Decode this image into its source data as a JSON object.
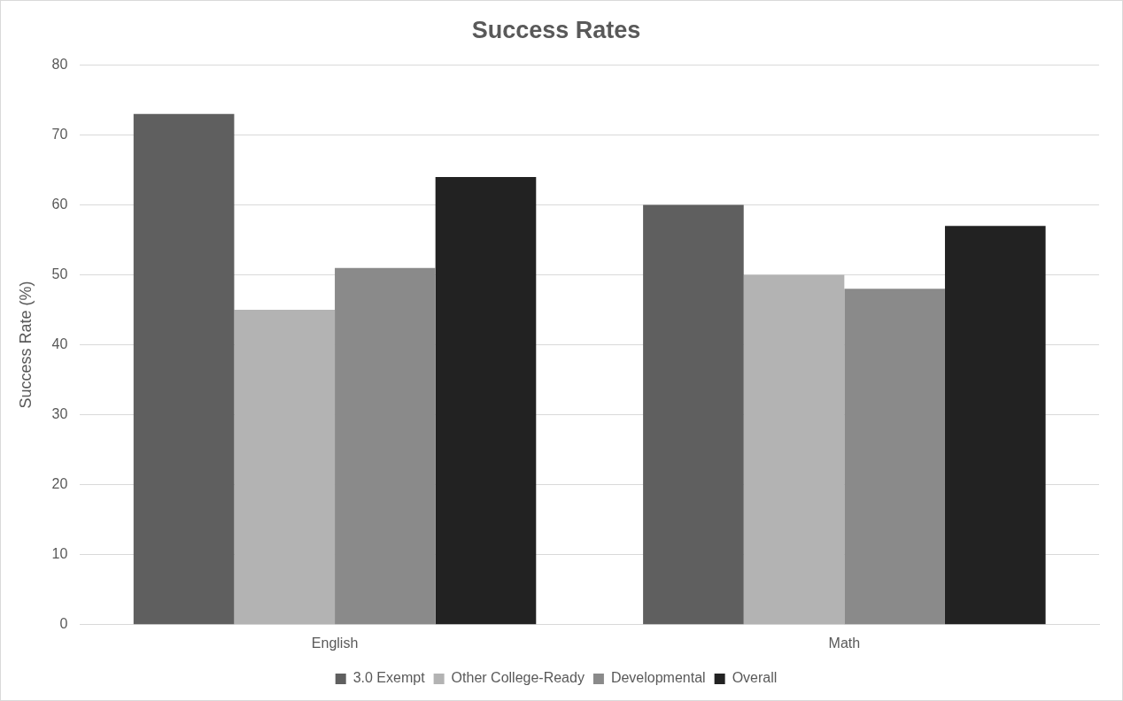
{
  "chart_data": {
    "type": "bar",
    "title": "Success Rates",
    "ylabel": "Success Rate (%)",
    "categories": [
      "English",
      "Math"
    ],
    "series": [
      {
        "name": "3.0 Exempt",
        "color": "#5f5f5f",
        "values": [
          73,
          60
        ]
      },
      {
        "name": "Other College-Ready",
        "color": "#b3b3b3",
        "values": [
          45,
          50
        ]
      },
      {
        "name": "Developmental",
        "color": "#8a8a8a",
        "values": [
          51,
          48
        ]
      },
      {
        "name": "Overall",
        "color": "#222222",
        "values": [
          64,
          57
        ]
      }
    ],
    "ylim": [
      0,
      80
    ],
    "yticks": [
      0,
      10,
      20,
      30,
      40,
      50,
      60,
      70,
      80
    ],
    "grid": "y",
    "legend": "bottom"
  }
}
